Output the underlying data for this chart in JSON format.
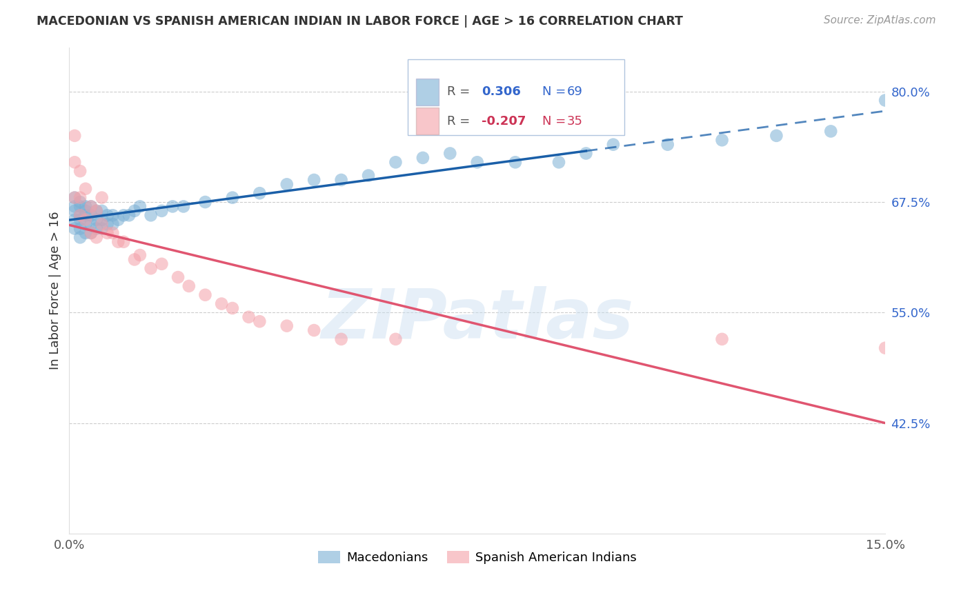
{
  "title": "MACEDONIAN VS SPANISH AMERICAN INDIAN IN LABOR FORCE | AGE > 16 CORRELATION CHART",
  "source": "Source: ZipAtlas.com",
  "ylabel": "In Labor Force | Age > 16",
  "xlim": [
    0.0,
    0.15
  ],
  "ylim": [
    0.3,
    0.85
  ],
  "yticks": [
    0.425,
    0.55,
    0.675,
    0.8
  ],
  "ytick_labels": [
    "42.5%",
    "55.0%",
    "67.5%",
    "80.0%"
  ],
  "background_color": "#ffffff",
  "grid_color": "#cccccc",
  "blue_color": "#7bafd4",
  "pink_color": "#f4a0a8",
  "blue_line_color": "#1a5fa8",
  "pink_line_color": "#e05570",
  "watermark": "ZIPatlas",
  "legend_box_color": "#e8f0f8",
  "legend_box_edge": "#b0c4de",
  "macedonian_x": [
    0.001,
    0.001,
    0.001,
    0.001,
    0.001,
    0.002,
    0.002,
    0.002,
    0.002,
    0.002,
    0.002,
    0.003,
    0.003,
    0.003,
    0.003,
    0.003,
    0.004,
    0.004,
    0.004,
    0.004,
    0.005,
    0.005,
    0.005,
    0.006,
    0.006,
    0.006,
    0.007,
    0.007,
    0.008,
    0.008,
    0.009,
    0.01,
    0.011,
    0.012,
    0.013,
    0.015,
    0.017,
    0.019,
    0.021,
    0.025,
    0.03,
    0.035,
    0.04,
    0.045,
    0.05,
    0.055,
    0.06,
    0.065,
    0.07,
    0.075,
    0.082,
    0.09,
    0.095,
    0.1,
    0.11,
    0.12,
    0.13,
    0.14,
    0.15
  ],
  "macedonian_y": [
    0.645,
    0.655,
    0.665,
    0.67,
    0.68,
    0.635,
    0.645,
    0.655,
    0.66,
    0.67,
    0.675,
    0.64,
    0.65,
    0.66,
    0.665,
    0.67,
    0.64,
    0.65,
    0.66,
    0.67,
    0.645,
    0.655,
    0.665,
    0.645,
    0.655,
    0.665,
    0.65,
    0.66,
    0.65,
    0.66,
    0.655,
    0.66,
    0.66,
    0.665,
    0.67,
    0.66,
    0.665,
    0.67,
    0.67,
    0.675,
    0.68,
    0.685,
    0.695,
    0.7,
    0.7,
    0.705,
    0.72,
    0.725,
    0.73,
    0.72,
    0.72,
    0.72,
    0.73,
    0.74,
    0.74,
    0.745,
    0.75,
    0.755,
    0.79
  ],
  "spanish_x": [
    0.001,
    0.001,
    0.001,
    0.002,
    0.002,
    0.002,
    0.003,
    0.003,
    0.004,
    0.004,
    0.005,
    0.005,
    0.006,
    0.006,
    0.007,
    0.008,
    0.009,
    0.01,
    0.012,
    0.013,
    0.015,
    0.017,
    0.02,
    0.022,
    0.025,
    0.028,
    0.03,
    0.033,
    0.035,
    0.04,
    0.045,
    0.05,
    0.06,
    0.12,
    0.15
  ],
  "spanish_y": [
    0.75,
    0.72,
    0.68,
    0.71,
    0.68,
    0.66,
    0.69,
    0.655,
    0.67,
    0.64,
    0.665,
    0.635,
    0.68,
    0.65,
    0.64,
    0.64,
    0.63,
    0.63,
    0.61,
    0.615,
    0.6,
    0.605,
    0.59,
    0.58,
    0.57,
    0.56,
    0.555,
    0.545,
    0.54,
    0.535,
    0.53,
    0.52,
    0.52,
    0.52,
    0.51
  ]
}
